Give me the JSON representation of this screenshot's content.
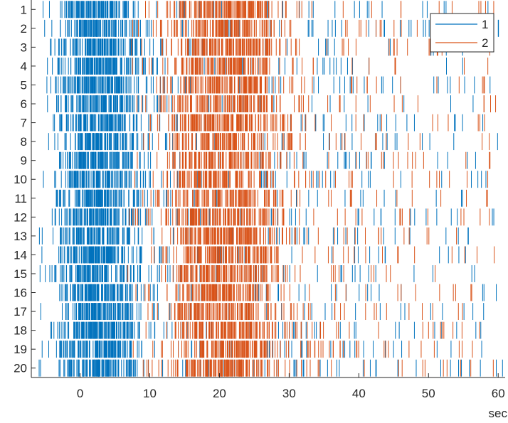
{
  "chart_data": {
    "type": "raster",
    "xlabel": "sec",
    "xlim": [
      -7,
      61
    ],
    "xticks": [
      0,
      10,
      20,
      30,
      40,
      50,
      60
    ],
    "ylim": [
      0.5,
      20.5
    ],
    "y_direction": "reverse",
    "trials": [
      1,
      2,
      3,
      4,
      5,
      6,
      7,
      8,
      9,
      10,
      11,
      12,
      13,
      14,
      15,
      16,
      17,
      18,
      19,
      20
    ],
    "grid": false,
    "legend": {
      "position": "top-right",
      "entries": [
        "1",
        "2"
      ]
    },
    "series": [
      {
        "name": "1",
        "color": "#0072BD",
        "density_profile": [
          [
            -7,
            0.0
          ],
          [
            -6,
            0.2
          ],
          [
            -4,
            1.0
          ],
          [
            -2,
            4.0
          ],
          [
            0,
            10.0
          ],
          [
            2,
            12.0
          ],
          [
            4,
            11.0
          ],
          [
            6,
            7.0
          ],
          [
            8,
            3.0
          ],
          [
            10,
            1.2
          ],
          [
            12,
            0.8
          ],
          [
            14,
            0.6
          ],
          [
            18,
            0.5
          ],
          [
            25,
            0.5
          ],
          [
            30,
            0.6
          ],
          [
            35,
            0.6
          ],
          [
            40,
            0.5
          ],
          [
            50,
            0.4
          ],
          [
            60,
            0.3
          ],
          [
            61,
            0.0
          ]
        ]
      },
      {
        "name": "2",
        "color": "#D95319",
        "density_profile": [
          [
            -7,
            0.0
          ],
          [
            6,
            0.0
          ],
          [
            9,
            0.6
          ],
          [
            11,
            1.2
          ],
          [
            13,
            2.5
          ],
          [
            15,
            6.0
          ],
          [
            18,
            9.0
          ],
          [
            21,
            9.5
          ],
          [
            24,
            8.5
          ],
          [
            26,
            6.0
          ],
          [
            28,
            3.0
          ],
          [
            30,
            1.5
          ],
          [
            33,
            0.8
          ],
          [
            40,
            0.6
          ],
          [
            50,
            0.5
          ],
          [
            59,
            0.4
          ],
          [
            60,
            0.0
          ]
        ]
      }
    ]
  }
}
